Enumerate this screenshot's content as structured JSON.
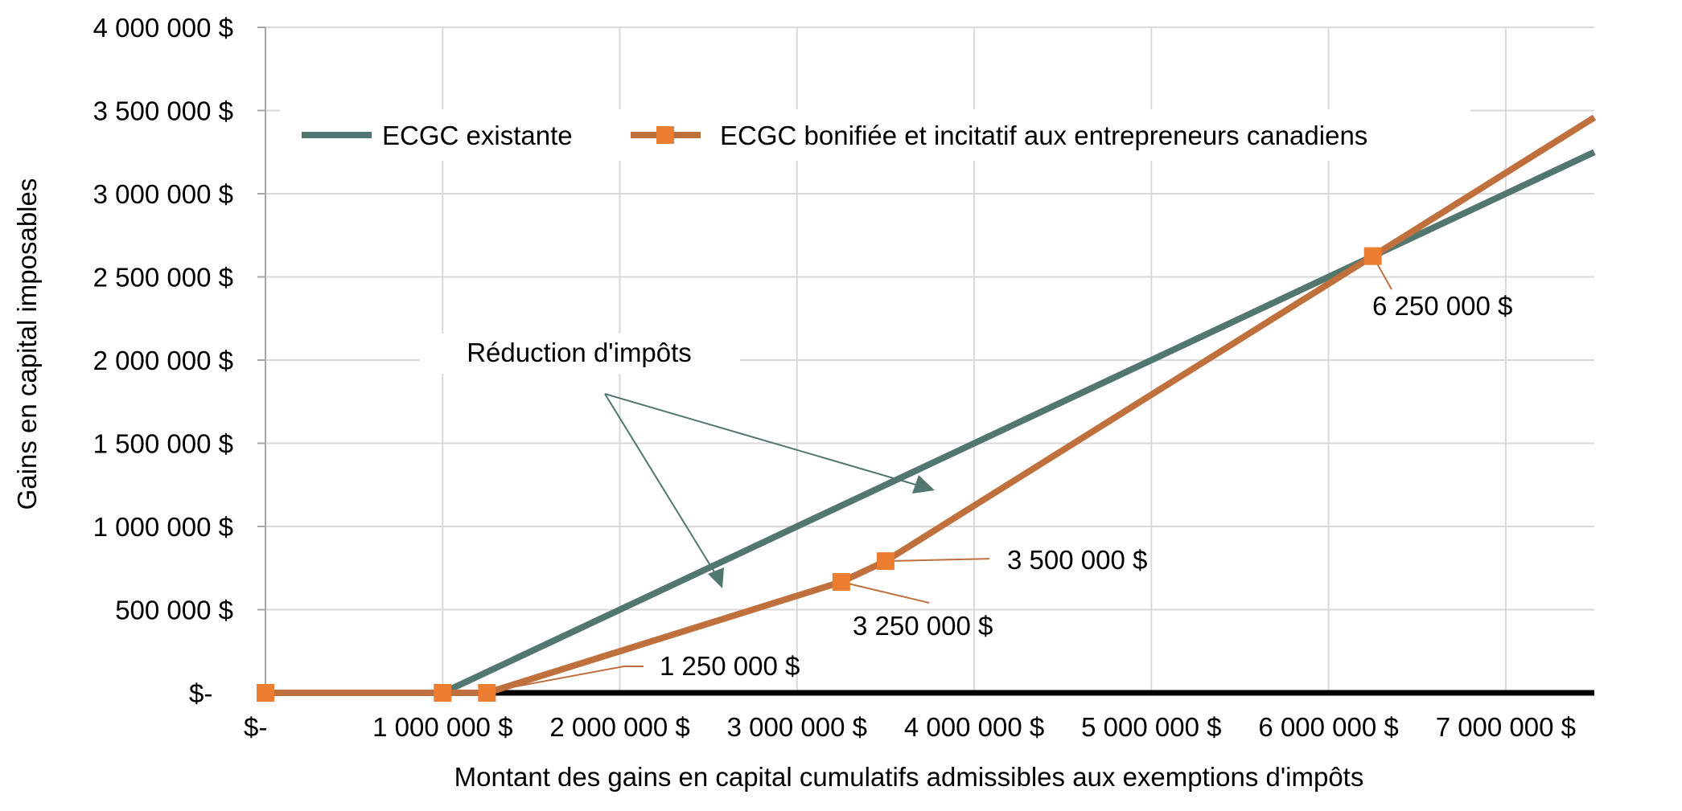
{
  "colors": {
    "existing": "#52776F",
    "enhanced_line": "#C0703C",
    "enhanced_marker": "#EC7D31",
    "annotation": "#52776F",
    "grid": "#D9D9D9",
    "axis": "#000000"
  },
  "chart_data": {
    "type": "line",
    "title": "",
    "xlabel": "Montant des gains en capital cumulatifs admissibles aux exemptions d'impôts",
    "ylabel": "Gains en capital imposables",
    "xlim": [
      0,
      7500000
    ],
    "ylim": [
      0,
      4000000
    ],
    "grid": true,
    "legend_position": "top",
    "x_tick_values": [
      0,
      1000000,
      2000000,
      3000000,
      4000000,
      5000000,
      6000000,
      7000000
    ],
    "x_tick_labels": [
      "$-",
      "1 000 000 $",
      "2 000 000 $",
      "3 000 000 $",
      "4 000 000 $",
      "5 000 000 $",
      "6 000 000 $",
      "7 000 000 $"
    ],
    "y_tick_values": [
      0,
      500000,
      1000000,
      1500000,
      2000000,
      2500000,
      3000000,
      3500000,
      4000000
    ],
    "y_tick_labels": [
      "$-",
      "500 000 $",
      "1 000 000 $",
      "1 500 000 $",
      "2 000 000 $",
      "2 500 000 $",
      "3 000 000 $",
      "3 500 000 $",
      "4 000 000 $"
    ],
    "series": [
      {
        "name": "ECGC existante",
        "x": [
          0,
          1000000,
          7500000
        ],
        "y": [
          0,
          0,
          3250000
        ],
        "markers": false
      },
      {
        "name": "ECGC bonifiée et incitatif aux entrepreneurs canadiens",
        "x": [
          0,
          1000000,
          1250000,
          3250000,
          3500000,
          6250000,
          7500000
        ],
        "y": [
          0,
          0,
          0,
          666667,
          791667,
          2625000,
          3458333
        ],
        "markers": true,
        "marker_x": [
          0,
          1000000,
          1250000,
          3250000,
          3500000,
          6250000
        ]
      }
    ],
    "annotations": [
      {
        "text": "1 250 000 $",
        "x": 1250000,
        "y": 0
      },
      {
        "text": "3 250 000 $",
        "x": 3250000,
        "y": 666667
      },
      {
        "text": "3 500 000 $",
        "x": 3500000,
        "y": 791667
      },
      {
        "text": "6 250 000 $",
        "x": 6250000,
        "y": 2625000
      },
      {
        "text": "Réduction d'impôts"
      }
    ]
  }
}
